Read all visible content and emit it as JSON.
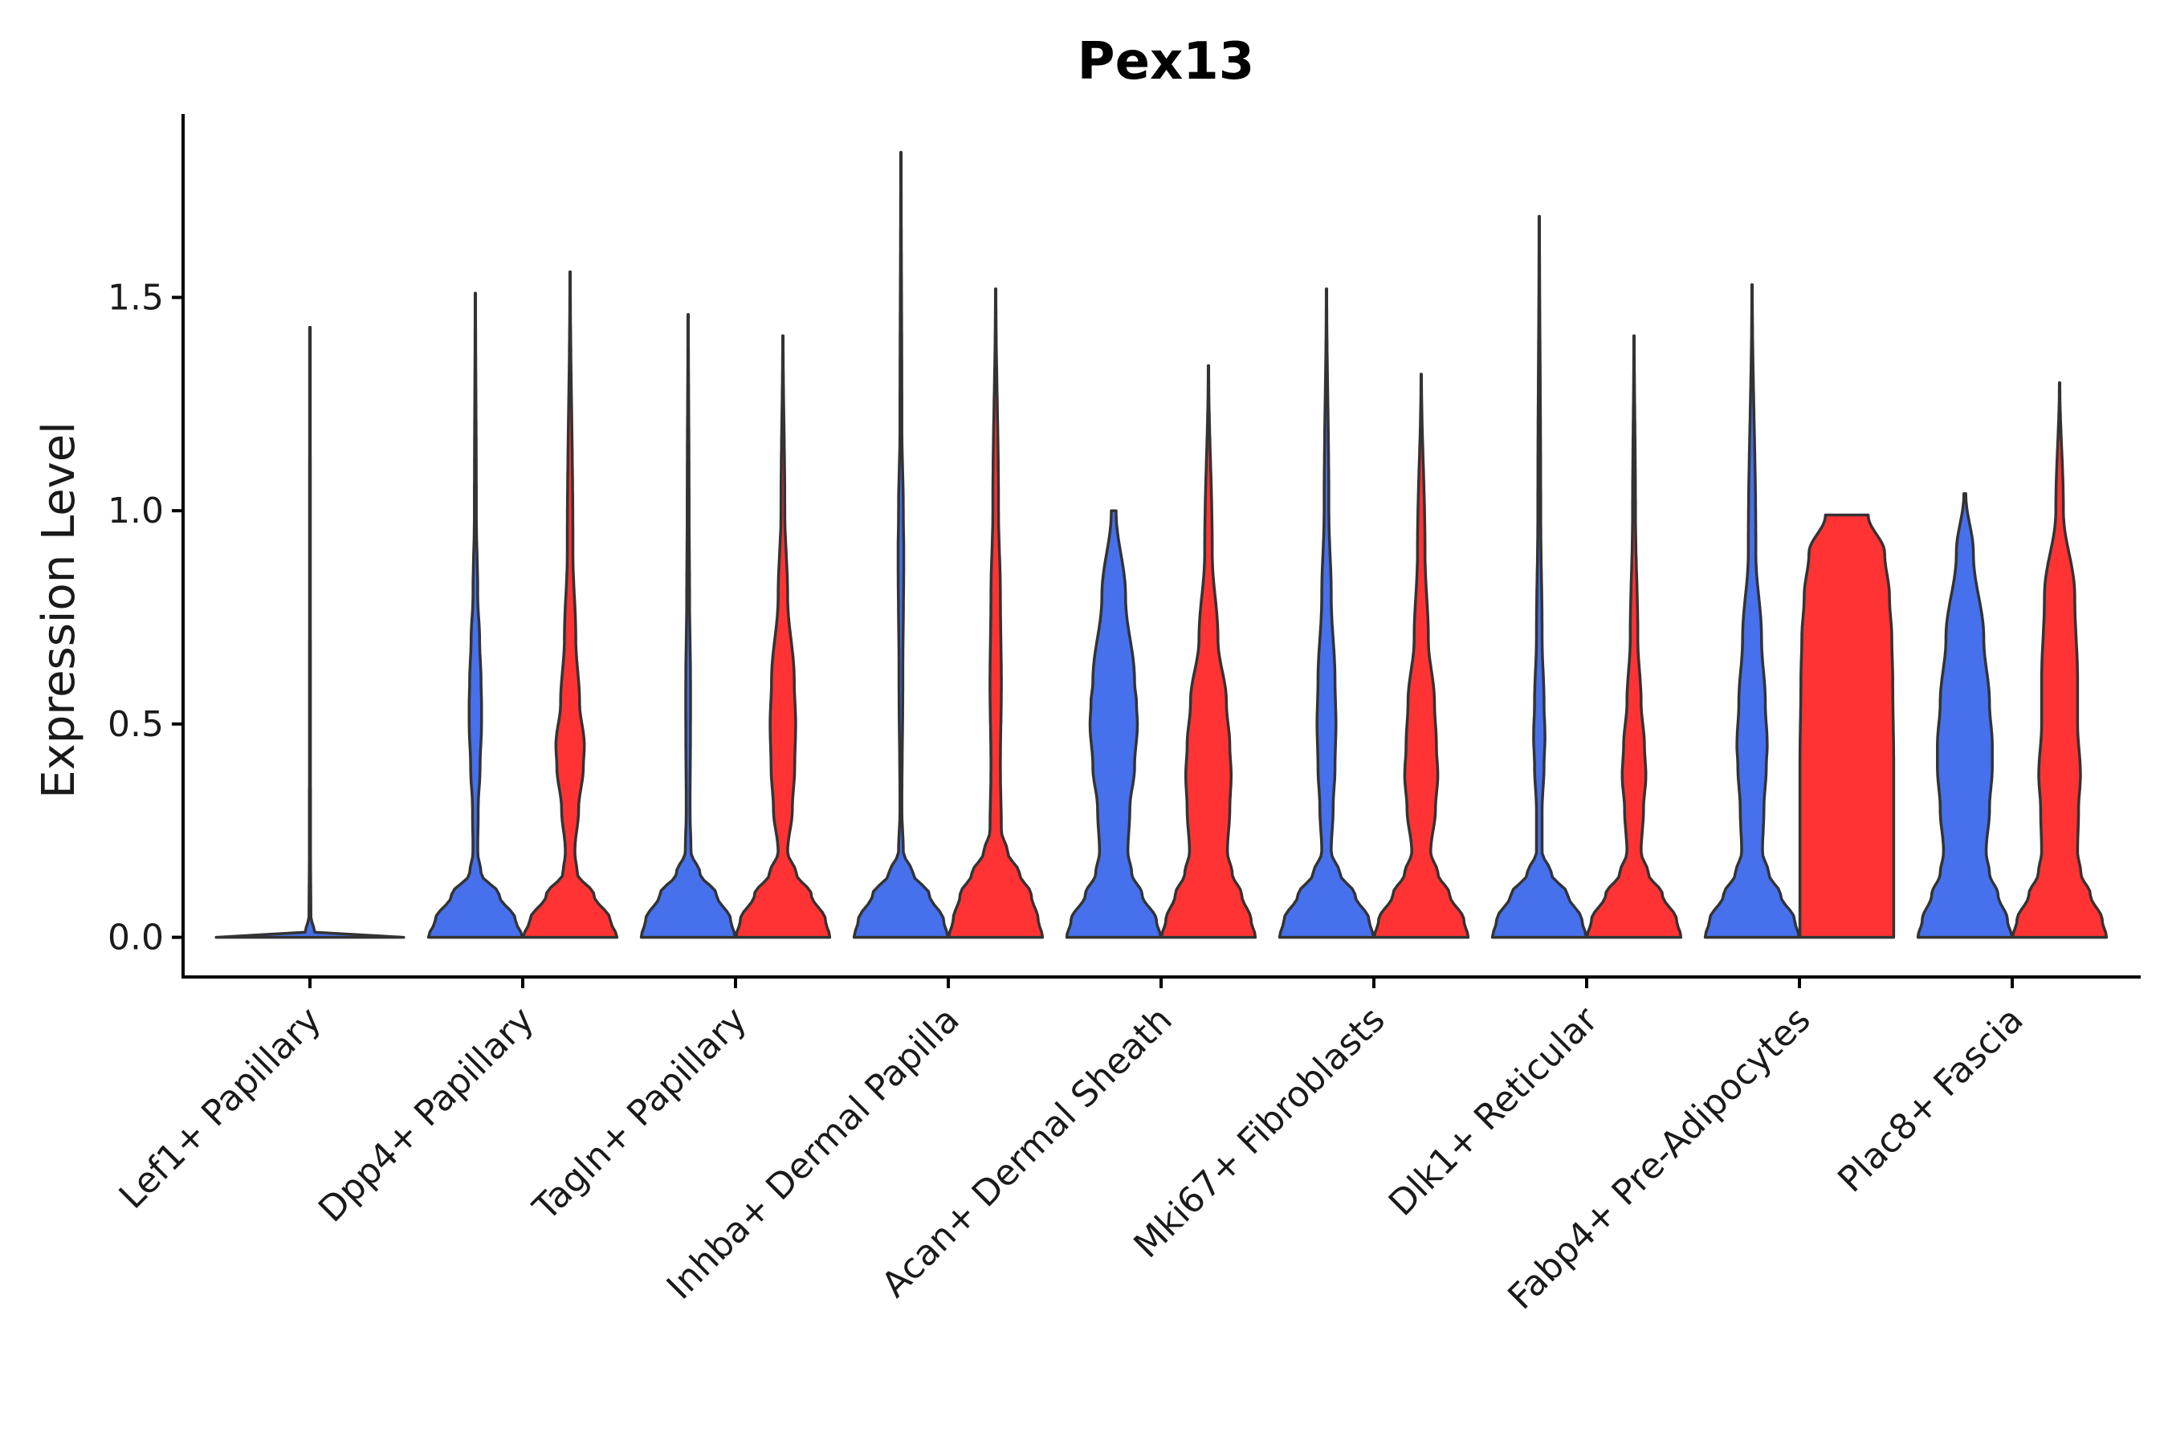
{
  "chart_data": {
    "type": "violin",
    "title": "Pex13",
    "ylabel": "Expression Level",
    "xlabel": "",
    "ylim": [
      -0.093,
      1.93
    ],
    "yticks": [
      0.0,
      0.5,
      1.0,
      1.5
    ],
    "ytick_labels": [
      "0.0",
      "0.5",
      "1.0",
      "1.5"
    ],
    "grid": false,
    "legend": "none",
    "colors": {
      "group_a": "#4670EC",
      "group_b": "#FF3333",
      "outline": "#333333"
    },
    "categories": [
      "Lef1+ Papillary",
      "Dpp4+ Papillary",
      "Tagln+ Papillary",
      "Inhba+ Dermal Papilla",
      "Acan+ Dermal Sheath",
      "Mki67+ Fibroblasts",
      "Dlk1+ Reticular",
      "Fabp4+ Pre-Adipocytes",
      "Plac8+ Fascia"
    ],
    "series": [
      {
        "color_key": "group_a",
        "violins": [
          {
            "max": 1.43,
            "profile": [
              [
                0,
                0.99
              ],
              [
                0.001,
                0.5
              ],
              [
                0.01,
                0.05
              ],
              [
                0.05,
                0.01
              ],
              [
                0.2,
                0.006
              ],
              [
                0.5,
                0.005
              ],
              [
                1.0,
                0.004
              ],
              [
                1.43,
                0.003
              ]
            ]
          },
          {
            "max": 1.51,
            "profile": [
              [
                0,
                0.99
              ],
              [
                0.04,
                0.85
              ],
              [
                0.1,
                0.5
              ],
              [
                0.15,
                0.12
              ],
              [
                0.2,
                0.05
              ],
              [
                0.3,
                0.06
              ],
              [
                0.4,
                0.1
              ],
              [
                0.5,
                0.13
              ],
              [
                0.55,
                0.13
              ],
              [
                0.6,
                0.12
              ],
              [
                0.7,
                0.09
              ],
              [
                0.8,
                0.05
              ],
              [
                1.0,
                0.02
              ],
              [
                1.51,
                0.005
              ]
            ]
          },
          {
            "max": 1.46,
            "profile": [
              [
                0,
                0.99
              ],
              [
                0.04,
                0.9
              ],
              [
                0.1,
                0.6
              ],
              [
                0.15,
                0.25
              ],
              [
                0.2,
                0.06
              ],
              [
                0.3,
                0.04
              ],
              [
                0.5,
                0.05
              ],
              [
                0.6,
                0.05
              ],
              [
                0.8,
                0.03
              ],
              [
                1.0,
                0.02
              ],
              [
                1.46,
                0.005
              ]
            ]
          },
          {
            "max": 1.84,
            "profile": [
              [
                0,
                0.99
              ],
              [
                0.04,
                0.9
              ],
              [
                0.1,
                0.6
              ],
              [
                0.15,
                0.25
              ],
              [
                0.2,
                0.05
              ],
              [
                0.3,
                0.02
              ],
              [
                0.6,
                0.04
              ],
              [
                0.9,
                0.06
              ],
              [
                1.0,
                0.05
              ],
              [
                1.2,
                0.02
              ],
              [
                1.84,
                0.005
              ]
            ]
          },
          {
            "max": 1.0,
            "profile": [
              [
                0,
                0.99
              ],
              [
                0.04,
                0.9
              ],
              [
                0.1,
                0.6
              ],
              [
                0.15,
                0.38
              ],
              [
                0.2,
                0.3
              ],
              [
                0.3,
                0.34
              ],
              [
                0.4,
                0.44
              ],
              [
                0.5,
                0.5
              ],
              [
                0.55,
                0.48
              ],
              [
                0.6,
                0.44
              ],
              [
                0.8,
                0.25
              ],
              [
                1.0,
                0.05
              ]
            ]
          },
          {
            "max": 1.52,
            "profile": [
              [
                0,
                0.99
              ],
              [
                0.04,
                0.9
              ],
              [
                0.1,
                0.6
              ],
              [
                0.15,
                0.28
              ],
              [
                0.2,
                0.1
              ],
              [
                0.3,
                0.14
              ],
              [
                0.4,
                0.18
              ],
              [
                0.5,
                0.2
              ],
              [
                0.6,
                0.18
              ],
              [
                0.8,
                0.1
              ],
              [
                1.0,
                0.05
              ],
              [
                1.52,
                0.005
              ]
            ]
          },
          {
            "max": 1.69,
            "profile": [
              [
                0,
                0.99
              ],
              [
                0.04,
                0.9
              ],
              [
                0.1,
                0.6
              ],
              [
                0.15,
                0.25
              ],
              [
                0.2,
                0.06
              ],
              [
                0.3,
                0.06
              ],
              [
                0.4,
                0.1
              ],
              [
                0.47,
                0.12
              ],
              [
                0.55,
                0.1
              ],
              [
                0.7,
                0.06
              ],
              [
                1.0,
                0.03
              ],
              [
                1.69,
                0.005
              ]
            ]
          },
          {
            "max": 1.53,
            "profile": [
              [
                0,
                0.99
              ],
              [
                0.04,
                0.9
              ],
              [
                0.1,
                0.6
              ],
              [
                0.15,
                0.35
              ],
              [
                0.2,
                0.22
              ],
              [
                0.3,
                0.25
              ],
              [
                0.4,
                0.3
              ],
              [
                0.45,
                0.32
              ],
              [
                0.55,
                0.28
              ],
              [
                0.7,
                0.2
              ],
              [
                0.9,
                0.08
              ],
              [
                1.53,
                0.005
              ]
            ]
          },
          {
            "max": 1.04,
            "profile": [
              [
                0,
                0.99
              ],
              [
                0.04,
                0.9
              ],
              [
                0.1,
                0.7
              ],
              [
                0.15,
                0.52
              ],
              [
                0.2,
                0.45
              ],
              [
                0.3,
                0.52
              ],
              [
                0.4,
                0.58
              ],
              [
                0.45,
                0.58
              ],
              [
                0.55,
                0.52
              ],
              [
                0.7,
                0.4
              ],
              [
                0.9,
                0.18
              ],
              [
                1.04,
                0.02
              ]
            ]
          }
        ]
      },
      {
        "color_key": "group_b",
        "violins": [
          null,
          {
            "max": 1.56,
            "profile": [
              [
                0,
                0.99
              ],
              [
                0.04,
                0.85
              ],
              [
                0.1,
                0.5
              ],
              [
                0.15,
                0.15
              ],
              [
                0.2,
                0.1
              ],
              [
                0.3,
                0.18
              ],
              [
                0.4,
                0.28
              ],
              [
                0.45,
                0.3
              ],
              [
                0.55,
                0.2
              ],
              [
                0.7,
                0.12
              ],
              [
                0.9,
                0.06
              ],
              [
                1.56,
                0.005
              ]
            ]
          },
          {
            "max": 1.41,
            "profile": [
              [
                0,
                0.99
              ],
              [
                0.04,
                0.9
              ],
              [
                0.1,
                0.6
              ],
              [
                0.15,
                0.28
              ],
              [
                0.2,
                0.1
              ],
              [
                0.3,
                0.2
              ],
              [
                0.4,
                0.25
              ],
              [
                0.5,
                0.27
              ],
              [
                0.6,
                0.24
              ],
              [
                0.8,
                0.1
              ],
              [
                1.0,
                0.04
              ],
              [
                1.41,
                0.005
              ]
            ]
          },
          {
            "max": 1.52,
            "profile": [
              [
                0,
                0.99
              ],
              [
                0.04,
                0.9
              ],
              [
                0.1,
                0.75
              ],
              [
                0.15,
                0.5
              ],
              [
                0.2,
                0.25
              ],
              [
                0.25,
                0.12
              ],
              [
                0.4,
                0.1
              ],
              [
                0.6,
                0.12
              ],
              [
                0.8,
                0.1
              ],
              [
                1.0,
                0.06
              ],
              [
                1.52,
                0.005
              ]
            ]
          },
          {
            "max": 1.34,
            "profile": [
              [
                0,
                0.99
              ],
              [
                0.04,
                0.9
              ],
              [
                0.1,
                0.7
              ],
              [
                0.15,
                0.5
              ],
              [
                0.2,
                0.4
              ],
              [
                0.3,
                0.45
              ],
              [
                0.38,
                0.48
              ],
              [
                0.45,
                0.45
              ],
              [
                0.55,
                0.38
              ],
              [
                0.7,
                0.2
              ],
              [
                0.9,
                0.08
              ],
              [
                1.34,
                0.005
              ]
            ]
          },
          {
            "max": 1.32,
            "profile": [
              [
                0,
                0.99
              ],
              [
                0.04,
                0.9
              ],
              [
                0.1,
                0.6
              ],
              [
                0.15,
                0.35
              ],
              [
                0.2,
                0.2
              ],
              [
                0.3,
                0.3
              ],
              [
                0.38,
                0.35
              ],
              [
                0.45,
                0.32
              ],
              [
                0.55,
                0.28
              ],
              [
                0.7,
                0.15
              ],
              [
                0.9,
                0.08
              ],
              [
                1.32,
                0.005
              ]
            ]
          },
          {
            "max": 1.41,
            "profile": [
              [
                0,
                0.99
              ],
              [
                0.04,
                0.9
              ],
              [
                0.1,
                0.6
              ],
              [
                0.15,
                0.3
              ],
              [
                0.2,
                0.15
              ],
              [
                0.3,
                0.2
              ],
              [
                0.38,
                0.25
              ],
              [
                0.45,
                0.22
              ],
              [
                0.55,
                0.15
              ],
              [
                0.7,
                0.08
              ],
              [
                1.0,
                0.03
              ],
              [
                1.41,
                0.005
              ]
            ]
          },
          {
            "max": 0.99,
            "profile": [
              [
                0,
                0.99
              ],
              [
                0.2,
                0.99
              ],
              [
                0.4,
                0.99
              ],
              [
                0.6,
                0.97
              ],
              [
                0.7,
                0.95
              ],
              [
                0.8,
                0.9
              ],
              [
                0.9,
                0.8
              ],
              [
                0.99,
                0.45
              ]
            ]
          },
          {
            "max": 1.3,
            "profile": [
              [
                0,
                0.99
              ],
              [
                0.04,
                0.9
              ],
              [
                0.1,
                0.65
              ],
              [
                0.15,
                0.45
              ],
              [
                0.2,
                0.38
              ],
              [
                0.3,
                0.4
              ],
              [
                0.38,
                0.44
              ],
              [
                0.5,
                0.38
              ],
              [
                0.6,
                0.38
              ],
              [
                0.8,
                0.32
              ],
              [
                1.0,
                0.08
              ],
              [
                1.3,
                0.005
              ]
            ]
          }
        ]
      }
    ]
  }
}
